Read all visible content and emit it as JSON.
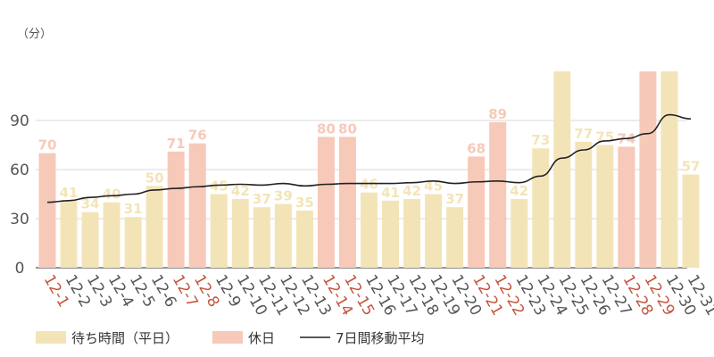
{
  "chart_data": {
    "type": "bar",
    "unit_label": "（分）",
    "categories": [
      "12-1",
      "12-2",
      "12-3",
      "12-4",
      "12-5",
      "12-6",
      "12-7",
      "12-8",
      "12-9",
      "12-10",
      "12-11",
      "12-12",
      "12-13",
      "12-14",
      "12-15",
      "12-16",
      "12-17",
      "12-18",
      "12-19",
      "12-20",
      "12-21",
      "12-22",
      "12-23",
      "12-24",
      "12-25",
      "12-26",
      "12-27",
      "12-28",
      "12-29",
      "12-30",
      "12-31"
    ],
    "values": [
      70,
      41,
      34,
      40,
      31,
      50,
      71,
      76,
      45,
      42,
      37,
      39,
      35,
      80,
      80,
      46,
      41,
      42,
      45,
      37,
      68,
      89,
      42,
      73,
      120,
      77,
      75,
      74,
      120,
      120,
      57
    ],
    "value_labels": [
      "70",
      "41",
      "34",
      "40",
      "31",
      "50",
      "71",
      "76",
      "45",
      "42",
      "37",
      "39",
      "35",
      "80",
      "80",
      "46",
      "41",
      "42",
      "45",
      "37",
      "68",
      "89",
      "42",
      "73",
      "",
      "77",
      "75",
      "74",
      "",
      "",
      "57"
    ],
    "holiday": [
      true,
      false,
      false,
      false,
      false,
      false,
      true,
      true,
      false,
      false,
      false,
      false,
      false,
      true,
      true,
      false,
      false,
      false,
      false,
      false,
      true,
      true,
      false,
      false,
      false,
      false,
      false,
      true,
      true,
      false,
      false
    ],
    "moving_average": [
      40,
      41,
      43,
      44,
      45,
      47.5,
      48.5,
      49.5,
      50.5,
      51,
      50.5,
      51.5,
      50,
      51,
      51.5,
      51.5,
      51.5,
      52,
      53,
      51.5,
      52.5,
      53,
      52,
      56,
      67,
      72,
      77.5,
      79,
      82,
      93.5,
      91
    ],
    "yticks": [
      0,
      30,
      60,
      90
    ],
    "ylim": [
      0,
      105
    ],
    "grid": true,
    "legend_position": "bottom-left",
    "legend": [
      "待ち時間（平日）",
      "休日",
      "7日間移動平均"
    ],
    "colors": {
      "weekday": "#f3e4b8",
      "holiday": "#f7c9b9",
      "weekday_label": "#f3e4b8",
      "holiday_label": "#f7c9b9",
      "holiday_tick": "#c4553e",
      "line": "#222222",
      "axis": "#555555",
      "grid": "#d9d9d9"
    }
  }
}
